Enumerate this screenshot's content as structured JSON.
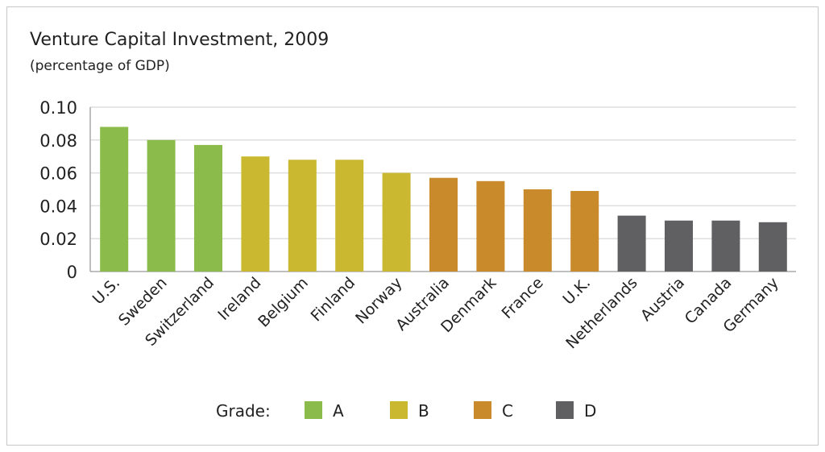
{
  "chart_data": {
    "type": "bar",
    "title": "Venture Capital Investment, 2009",
    "subtitle": "(percentage of GDP)",
    "xlabel": "",
    "ylabel": "",
    "ylim": [
      0,
      0.1
    ],
    "yticks": [
      "0",
      "0.02",
      "0.04",
      "0.06",
      "0.08",
      "0.10"
    ],
    "grid": true,
    "categories": [
      "U.S.",
      "Sweden",
      "Switzerland",
      "Ireland",
      "Belgium",
      "Finland",
      "Norway",
      "Australia",
      "Denmark",
      "France",
      "U.K.",
      "Netherlands",
      "Austria",
      "Canada",
      "Germany"
    ],
    "values": [
      0.088,
      0.08,
      0.077,
      0.07,
      0.068,
      0.068,
      0.06,
      0.057,
      0.055,
      0.05,
      0.049,
      0.034,
      0.031,
      0.031,
      0.03
    ],
    "grades": [
      "A",
      "A",
      "A",
      "B",
      "B",
      "B",
      "B",
      "C",
      "C",
      "C",
      "C",
      "D",
      "D",
      "D",
      "D"
    ],
    "legend": {
      "title": "Grade:",
      "placement": "bottom",
      "entries": [
        {
          "label": "A",
          "color": "#8bbb4b"
        },
        {
          "label": "B",
          "color": "#cab930"
        },
        {
          "label": "C",
          "color": "#c88a2a"
        },
        {
          "label": "D",
          "color": "#606063"
        }
      ]
    }
  }
}
